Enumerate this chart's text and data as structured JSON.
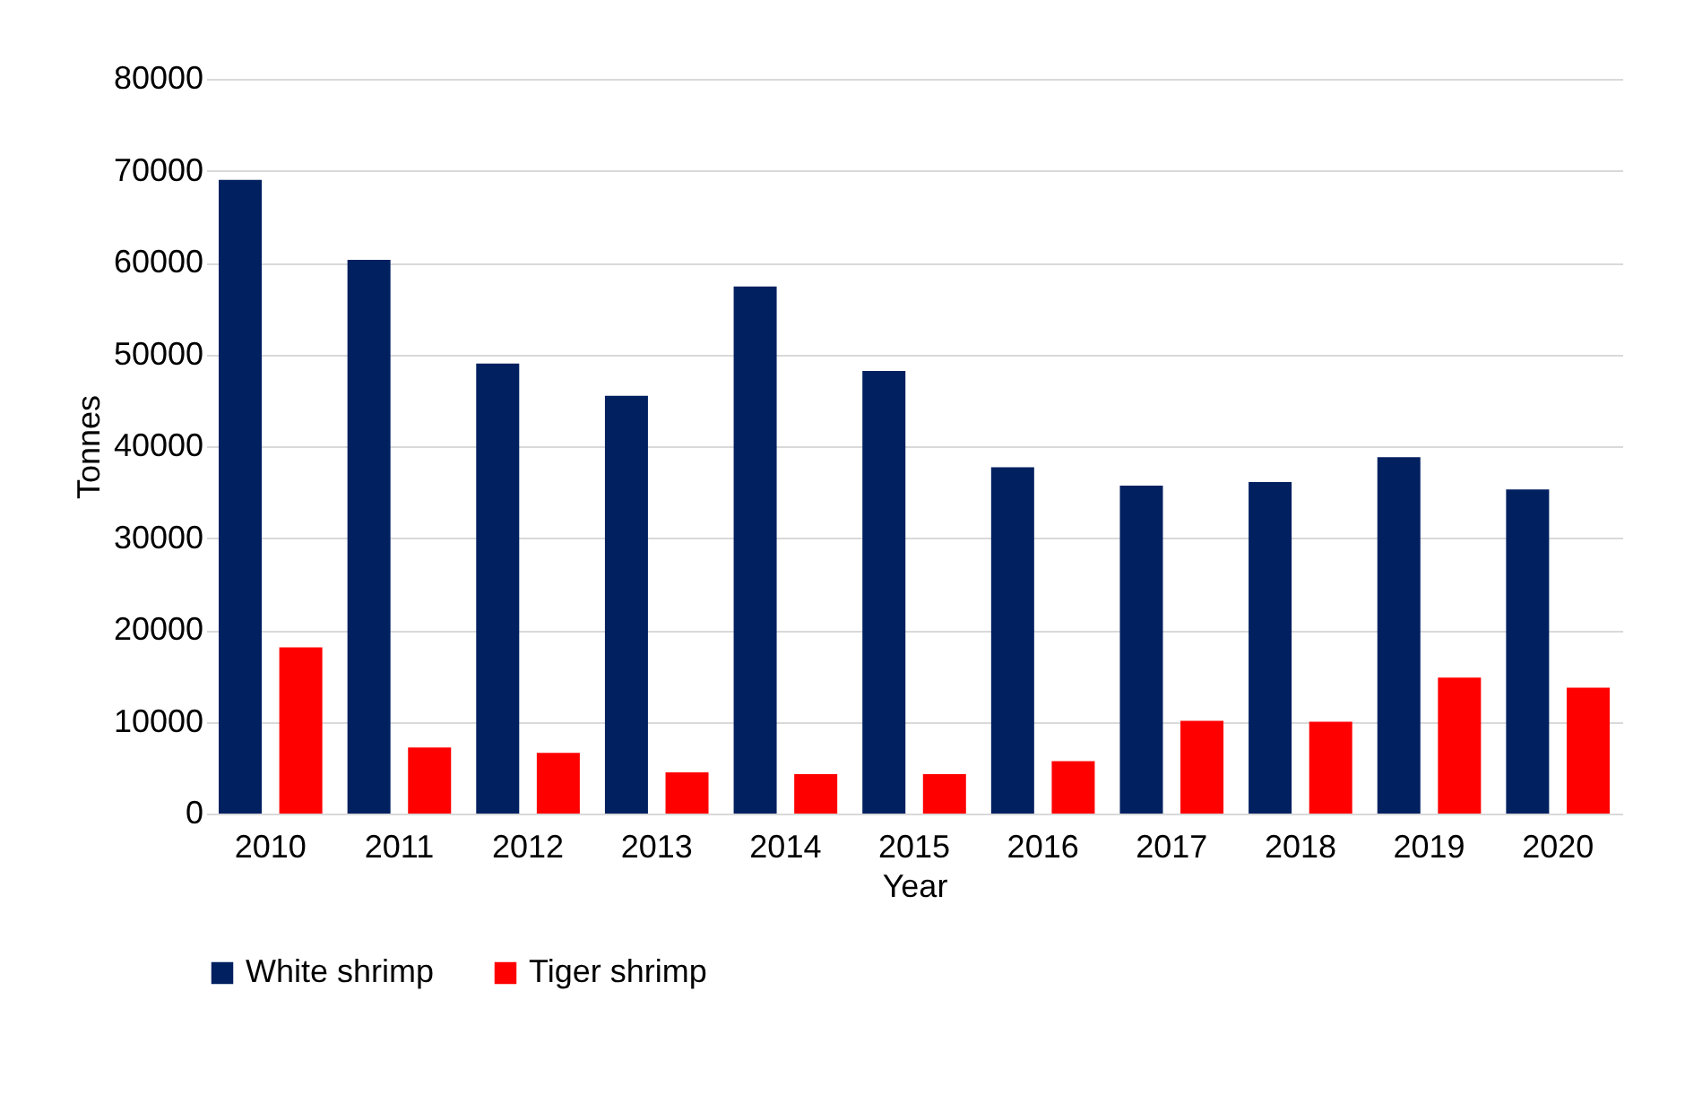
{
  "chart_data": {
    "type": "bar",
    "xlabel": "Year",
    "ylabel": "Tonnes",
    "categories": [
      "2010",
      "2011",
      "2012",
      "2013",
      "2014",
      "2015",
      "2016",
      "2017",
      "2018",
      "2019",
      "2020"
    ],
    "series": [
      {
        "name": "White shrimp",
        "color": "#002060",
        "values": [
          69000,
          60300,
          49000,
          45500,
          57400,
          48200,
          37700,
          35700,
          36100,
          38800,
          35300
        ]
      },
      {
        "name": "Tiger shrimp",
        "color": "#ff0000",
        "values": [
          18100,
          7200,
          6600,
          4500,
          4300,
          4300,
          5700,
          10100,
          10000,
          14800,
          13700
        ]
      }
    ],
    "ylim": [
      0,
      80000
    ],
    "yticks": [
      0,
      10000,
      20000,
      30000,
      40000,
      50000,
      60000,
      70000,
      80000
    ],
    "grid": "y",
    "legend": "bottom"
  }
}
